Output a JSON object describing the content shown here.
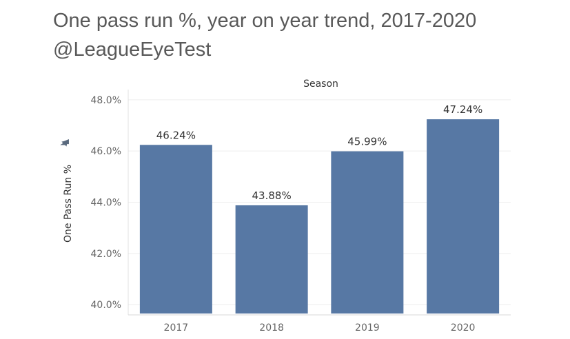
{
  "title": {
    "line1": "One pass run %, year on year trend, 2017-2020",
    "line2": "@LeagueEyeTest"
  },
  "chart_data": {
    "type": "bar",
    "header": "Season",
    "categories": [
      "2017",
      "2018",
      "2019",
      "2020"
    ],
    "values": [
      46.24,
      43.88,
      45.99,
      47.24
    ],
    "value_labels": [
      "46.24%",
      "43.88%",
      "45.99%",
      "47.24%"
    ],
    "ylabel": "One Pass Run %",
    "xlabel": "",
    "ylim": [
      39.6,
      48.4
    ],
    "y_ticks": [
      40.0,
      42.0,
      44.0,
      46.0,
      48.0
    ],
    "y_tick_labels": [
      "40.0%",
      "42.0%",
      "44.0%",
      "46.0%",
      "48.0%"
    ],
    "grid": true,
    "bar_color": "#5778a4",
    "pin_icon": "pin-icon"
  }
}
